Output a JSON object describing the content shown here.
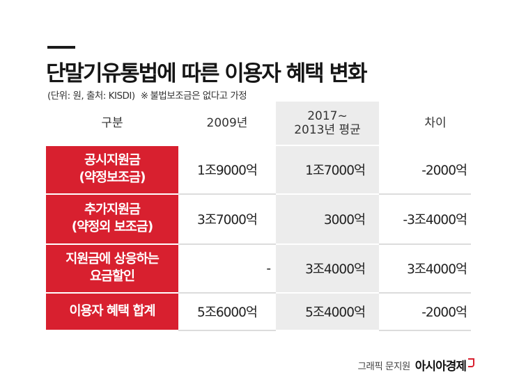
{
  "title": "단말기유통법에 따른 이용자 혜택 변화",
  "subtitle": {
    "unit": "(단위: 원, 출처: KISDI)",
    "note_mark": "※",
    "note": "불법보조금은 없다고 가정"
  },
  "table": {
    "headers": {
      "category": "구분",
      "year2009": "2009년",
      "avg_line1": "2017~",
      "avg_line2": "2013년 평균",
      "diff": "차이"
    },
    "rows": [
      {
        "label_line1": "공시지원금",
        "label_line2": "(약정보조금)",
        "y2009": "1조9000억",
        "avg": "1조7000억",
        "diff": "-2000억"
      },
      {
        "label_line1": "추가지원금",
        "label_line2": "(약정외 보조금)",
        "y2009": "3조7000억",
        "avg": "3000억",
        "diff": "-3조4000억"
      },
      {
        "label_line1": "지원금에 상응하는",
        "label_line2": "요금할인",
        "y2009": "-",
        "avg": "3조4000억",
        "diff": "3조4000억"
      },
      {
        "label_line1": "이용자 혜택 합계",
        "label_line2": "",
        "y2009": "5조6000억",
        "avg": "5조4000억",
        "diff": "-2000억"
      }
    ]
  },
  "credit": {
    "byline": "그래픽 문지원",
    "brand": "아시아경제"
  },
  "colors": {
    "accent_red": "#d8202f",
    "shade_gray": "#ececec"
  }
}
